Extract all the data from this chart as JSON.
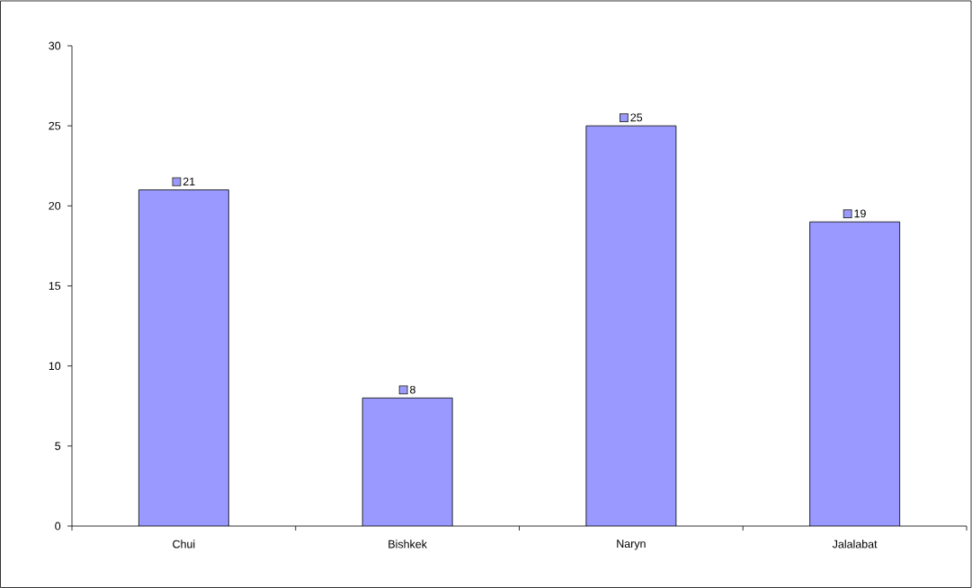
{
  "chart_data": {
    "type": "bar",
    "categories": [
      "Chui",
      "Bishkek",
      "Naryn",
      "Jalalabat"
    ],
    "values": [
      21,
      8,
      25,
      19
    ],
    "color": "#9999ff",
    "ylim": [
      0,
      30
    ],
    "yticks": [
      0,
      5,
      10,
      15,
      20,
      25,
      30
    ],
    "data_labels": true
  }
}
